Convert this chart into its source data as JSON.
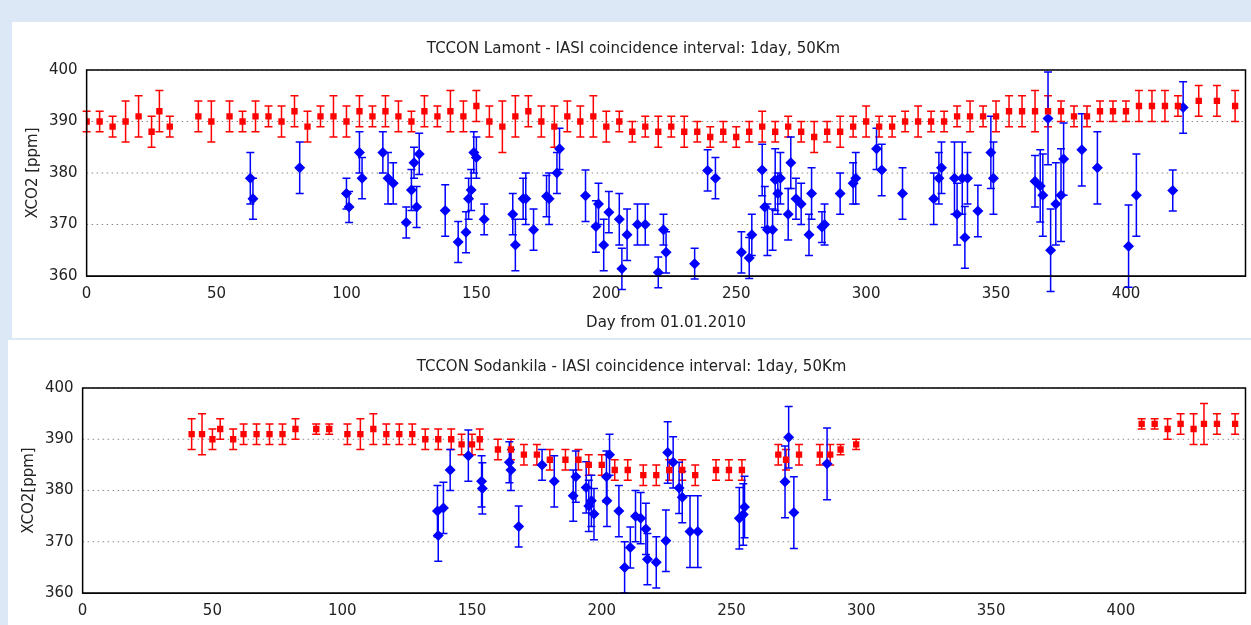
{
  "chart_data": [
    {
      "type": "scatter",
      "title": "TCCON Lamont - IASI coincidence interval: 1day, 50Km",
      "xlabel": "Day from 01.01.2010",
      "ylabel": "XCO2 [ppm]",
      "xlim": [
        0,
        446
      ],
      "xticks": [
        0,
        50,
        100,
        150,
        200,
        250,
        300,
        350,
        400
      ],
      "ylim": [
        360,
        400
      ],
      "yticks": [
        360,
        370,
        380,
        390,
        400
      ],
      "grid": "y",
      "legend": false,
      "series": [
        {
          "color": "#ff0000",
          "marker": "square",
          "x": [
            0,
            5,
            10,
            15,
            20,
            25,
            28,
            32,
            43,
            48,
            55,
            60,
            65,
            70,
            75,
            80,
            85,
            90,
            95,
            100,
            105,
            110,
            115,
            120,
            125,
            130,
            135,
            140,
            145,
            150,
            155,
            160,
            165,
            170,
            175,
            180,
            185,
            190,
            195,
            200,
            205,
            210,
            215,
            220,
            225,
            230,
            235,
            240,
            245,
            250,
            255,
            260,
            265,
            270,
            275,
            280,
            285,
            290,
            295,
            300,
            305,
            310,
            315,
            320,
            325,
            330,
            335,
            340,
            345,
            350,
            355,
            360,
            365,
            370,
            375,
            380,
            385,
            390,
            395,
            400,
            405,
            410,
            415,
            420,
            428,
            435,
            442
          ],
          "values": [
            390,
            390,
            389,
            390,
            391,
            388,
            392,
            389,
            391,
            390,
            391,
            390,
            391,
            391,
            390,
            392,
            389,
            391,
            391,
            390,
            392,
            391,
            392,
            391,
            390,
            392,
            391,
            392,
            391,
            393,
            390,
            389,
            391,
            392,
            390,
            389,
            391,
            390,
            391,
            389,
            390,
            388,
            389,
            388,
            389,
            388,
            388,
            387,
            388,
            387,
            388,
            389,
            388,
            389,
            388,
            387,
            388,
            388,
            389,
            390,
            389,
            389,
            390,
            390,
            390,
            390,
            391,
            391,
            391,
            391,
            392,
            392,
            392,
            392,
            392,
            391,
            391,
            392,
            392,
            392,
            393,
            393,
            393,
            393,
            394,
            394,
            393
          ],
          "errors": [
            2,
            2,
            2,
            4,
            4,
            3,
            4,
            2,
            3,
            4,
            3,
            2,
            3,
            2,
            3,
            3,
            3,
            2,
            4,
            3,
            3,
            2,
            3,
            3,
            2,
            3,
            2,
            4,
            3,
            3,
            3,
            5,
            4,
            3,
            3,
            4,
            3,
            3,
            4,
            3,
            2,
            2,
            2,
            3,
            2,
            3,
            2,
            2,
            2,
            2,
            2,
            3,
            2,
            2,
            2,
            3,
            2,
            3,
            2,
            3,
            2,
            2,
            2,
            3,
            2,
            2,
            2,
            3,
            2,
            3,
            3,
            3,
            4,
            3,
            2,
            2,
            2,
            2,
            2,
            2,
            3,
            3,
            3,
            2,
            3,
            3,
            3
          ]
        },
        {
          "color": "#0000ff",
          "marker": "diamond",
          "x": [
            63,
            64,
            82,
            100,
            101,
            105,
            106,
            114,
            116,
            118,
            123,
            125,
            126,
            127,
            128,
            138,
            143,
            146,
            147,
            148,
            149,
            150,
            153,
            164,
            165,
            168,
            169,
            172,
            177,
            178,
            181,
            182,
            192,
            196,
            197,
            199,
            201,
            205,
            206,
            208,
            212,
            215,
            220,
            222,
            223,
            234,
            239,
            242,
            252,
            255,
            256,
            260,
            261,
            262,
            264,
            265,
            266,
            267,
            270,
            271,
            273,
            275,
            278,
            279,
            283,
            284,
            290,
            295,
            296,
            304,
            306,
            314,
            326,
            328,
            329,
            334,
            335,
            337,
            338,
            339,
            343,
            348,
            349,
            365,
            367,
            368,
            370,
            371,
            373,
            375,
            376,
            383,
            389,
            401,
            404,
            418,
            422
          ],
          "values": [
            379,
            375,
            381,
            376,
            373.4,
            384,
            379,
            384,
            379,
            378,
            370.4,
            376.7,
            382,
            373.4,
            383.7,
            372.7,
            366.6,
            368.5,
            375,
            376.7,
            384,
            383,
            371,
            372,
            366,
            375,
            375,
            369,
            375.5,
            375,
            380,
            384.7,
            375.6,
            369.6,
            374,
            366,
            372.4,
            371,
            361.4,
            368,
            370,
            370,
            360.7,
            369,
            364.6,
            362.4,
            380.5,
            379,
            364.6,
            363.5,
            368,
            380.6,
            373.4,
            369,
            369,
            378.7,
            376,
            379,
            372,
            382,
            375,
            374,
            368,
            376,
            369.5,
            370,
            376,
            378,
            379,
            384.7,
            380.6,
            376,
            375,
            379,
            381,
            379,
            372,
            379,
            367.5,
            379,
            372.6,
            384,
            379,
            378.4,
            377.5,
            375.7,
            390.6,
            365,
            374,
            375.7,
            382.7,
            384.5,
            381,
            365.8,
            375.7,
            376.6,
            392.7
          ],
          "errors": [
            5,
            4,
            5,
            3,
            3,
            4,
            4,
            4,
            5,
            4,
            3,
            4,
            3,
            4,
            4,
            5,
            4,
            4,
            4,
            4,
            4,
            4,
            3,
            4,
            5,
            4,
            5,
            4,
            4,
            5,
            4,
            4,
            5,
            5,
            4,
            5,
            4,
            5,
            4,
            5,
            4,
            4,
            3,
            3,
            4,
            3,
            4,
            4,
            4,
            4,
            4,
            5,
            4,
            5,
            4,
            6,
            4,
            5,
            5,
            5,
            4,
            4,
            4,
            5,
            3,
            4,
            4,
            4,
            5,
            4,
            5,
            5,
            5,
            5,
            5,
            7,
            6,
            7,
            6,
            5,
            5,
            7,
            7,
            5,
            7,
            8,
            9,
            8,
            8,
            9,
            7,
            7,
            7,
            8,
            8,
            4,
            5
          ]
        }
      ]
    },
    {
      "type": "scatter",
      "title": "TCCON Sodankila - IASI coincidence interval: 1day, 50Km",
      "ylabel": "XCO2[ppm]",
      "xlim": [
        0,
        448
      ],
      "xticks": [
        0,
        50,
        100,
        150,
        200,
        250,
        300,
        350,
        400
      ],
      "ylim": [
        360,
        400
      ],
      "yticks": [
        360,
        370,
        380,
        390,
        400
      ],
      "grid": "y",
      "legend": false,
      "series": [
        {
          "color": "#ff0000",
          "marker": "square",
          "x": [
            42,
            46,
            50,
            53,
            58,
            62,
            67,
            72,
            77,
            82,
            90,
            95,
            102,
            107,
            112,
            117,
            122,
            127,
            132,
            137,
            142,
            146,
            150,
            153,
            160,
            165,
            170,
            175,
            180,
            186,
            191,
            195,
            200,
            205,
            210,
            216,
            221,
            226,
            231,
            236,
            244,
            249,
            254,
            268,
            271,
            276,
            284,
            288,
            292,
            298,
            408,
            413,
            418,
            423,
            428,
            432,
            437,
            444
          ],
          "values": [
            391,
            391,
            390,
            392,
            390,
            391,
            391,
            391,
            391,
            392,
            392,
            392,
            391,
            391,
            392,
            391,
            391,
            391,
            390,
            390,
            390,
            389,
            389,
            390,
            388,
            388,
            387,
            387,
            386,
            386,
            386,
            385,
            385,
            384,
            384,
            383,
            383,
            384,
            384,
            383,
            384,
            384,
            384,
            387,
            386,
            387,
            387,
            387,
            388,
            389,
            393,
            393,
            392,
            393,
            392,
            393,
            393,
            393
          ],
          "errors": [
            3,
            4,
            2,
            2,
            2,
            2,
            2,
            2,
            2,
            2,
            1,
            1,
            2,
            3,
            3,
            2,
            2,
            2,
            2,
            2,
            2,
            2,
            2,
            2,
            2,
            2,
            2,
            2,
            2,
            2,
            2,
            2,
            2,
            2,
            2,
            2,
            2,
            2,
            2,
            2,
            2,
            2,
            2,
            2,
            2,
            2,
            2,
            2,
            1,
            1,
            1,
            1,
            2,
            2,
            3,
            4,
            2,
            2
          ]
        },
        {
          "color": "#0000ff",
          "marker": "diamond",
          "x": [
            136.7,
            137,
            139,
            141.6,
            148.6,
            153.7,
            154,
            164.4,
            165,
            168,
            177,
            181.7,
            189,
            190,
            194,
            195,
            196,
            197,
            201.8,
            202,
            203,
            206.6,
            208.8,
            211,
            213,
            215,
            217,
            217.6,
            221,
            224.7,
            225.4,
            227.5,
            229.8,
            231,
            234,
            237,
            253,
            254.5,
            255,
            270.6,
            272,
            274,
            286.8
          ],
          "values": [
            376,
            371.2,
            376.6,
            384,
            386.8,
            381.8,
            380.4,
            385.5,
            384,
            373,
            385,
            381.8,
            379,
            382.7,
            380.6,
            377,
            378,
            375.4,
            382.7,
            378,
            387,
            376,
            365,
            368.9,
            375,
            374.6,
            372.5,
            366.6,
            366,
            370.2,
            387.4,
            385.5,
            380.5,
            378.7,
            372,
            372,
            374.6,
            375.3,
            376.8,
            381.7,
            390.4,
            375.7,
            385.2
          ],
          "errors": [
            5,
            5,
            5,
            4,
            5,
            5,
            5,
            4,
            4,
            4,
            3,
            5,
            5,
            5,
            5,
            5,
            5,
            5,
            5,
            5,
            4,
            5,
            5,
            4,
            5,
            5,
            5,
            5,
            5,
            6,
            6,
            5,
            5,
            5,
            7,
            7,
            6,
            6,
            6,
            7,
            6,
            7,
            7
          ]
        }
      ]
    }
  ]
}
